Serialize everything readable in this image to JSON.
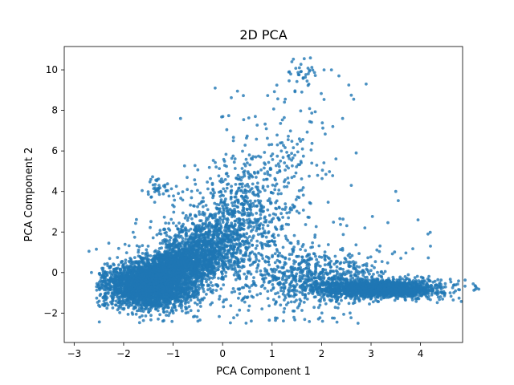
{
  "chart_data": {
    "type": "scatter",
    "title": "2D PCA",
    "xlabel": "PCA Component 1",
    "ylabel": "PCA Component 2",
    "xlim": [
      -3.2,
      4.85
    ],
    "ylim": [
      -3.45,
      11.15
    ],
    "xticks": [
      -3,
      -2,
      -1,
      0,
      1,
      2,
      3,
      4
    ],
    "yticks": [
      -2,
      0,
      2,
      4,
      6,
      8,
      10
    ],
    "grid": false,
    "legend": false,
    "color": "#1f77b4",
    "clusters": [
      {
        "center": [
          -1.45,
          -0.6
        ],
        "spread": [
          0.45,
          0.55
        ],
        "count": 3200
      },
      {
        "center": [
          -0.9,
          0.4
        ],
        "spread": [
          0.35,
          0.35
        ],
        "count": 800
      },
      {
        "center": [
          -0.45,
          1.1
        ],
        "spread": [
          0.4,
          0.7
        ],
        "count": 900
      },
      {
        "center": [
          0.1,
          2.4
        ],
        "spread": [
          0.45,
          1.1
        ],
        "count": 500
      },
      {
        "center": [
          0.6,
          3.6
        ],
        "spread": [
          0.55,
          1.4
        ],
        "count": 250
      },
      {
        "center": [
          1.2,
          5.6
        ],
        "spread": [
          0.6,
          1.8
        ],
        "count": 150
      },
      {
        "center": [
          1.6,
          9.8
        ],
        "spread": [
          0.15,
          0.45
        ],
        "count": 30
      },
      {
        "center": [
          3.2,
          -0.8
        ],
        "spread": [
          0.6,
          0.22
        ],
        "count": 1800
      },
      {
        "center": [
          1.9,
          -0.3
        ],
        "spread": [
          0.7,
          0.6
        ],
        "count": 500
      },
      {
        "center": [
          -1.3,
          4.1
        ],
        "spread": [
          0.15,
          0.3
        ],
        "count": 40
      },
      {
        "center": [
          1.0,
          0.0
        ],
        "spread": [
          1.2,
          1.4
        ],
        "count": 400
      }
    ],
    "outliers": [
      [
        -2.7,
        1.05
      ],
      [
        -2.55,
        1.15
      ],
      [
        -2.65,
        0.0
      ],
      [
        -2.3,
        1.45
      ],
      [
        2.05,
        10.0
      ],
      [
        2.2,
        10.0
      ],
      [
        2.35,
        9.7
      ],
      [
        2.55,
        9.25
      ],
      [
        2.65,
        8.55
      ],
      [
        2.6,
        8.75
      ],
      [
        2.9,
        9.3
      ],
      [
        -0.85,
        7.6
      ],
      [
        0.3,
        8.95
      ],
      [
        -0.15,
        9.1
      ],
      [
        3.5,
        4.0
      ],
      [
        3.55,
        3.55
      ],
      [
        3.95,
        2.6
      ],
      [
        4.15,
        1.9
      ],
      [
        4.5,
        -0.55
      ],
      [
        4.35,
        -0.35
      ],
      [
        4.2,
        1.3
      ],
      [
        2.7,
        5.9
      ],
      [
        2.6,
        4.3
      ],
      [
        1.4,
        10.4
      ],
      [
        1.65,
        10.55
      ]
    ]
  }
}
